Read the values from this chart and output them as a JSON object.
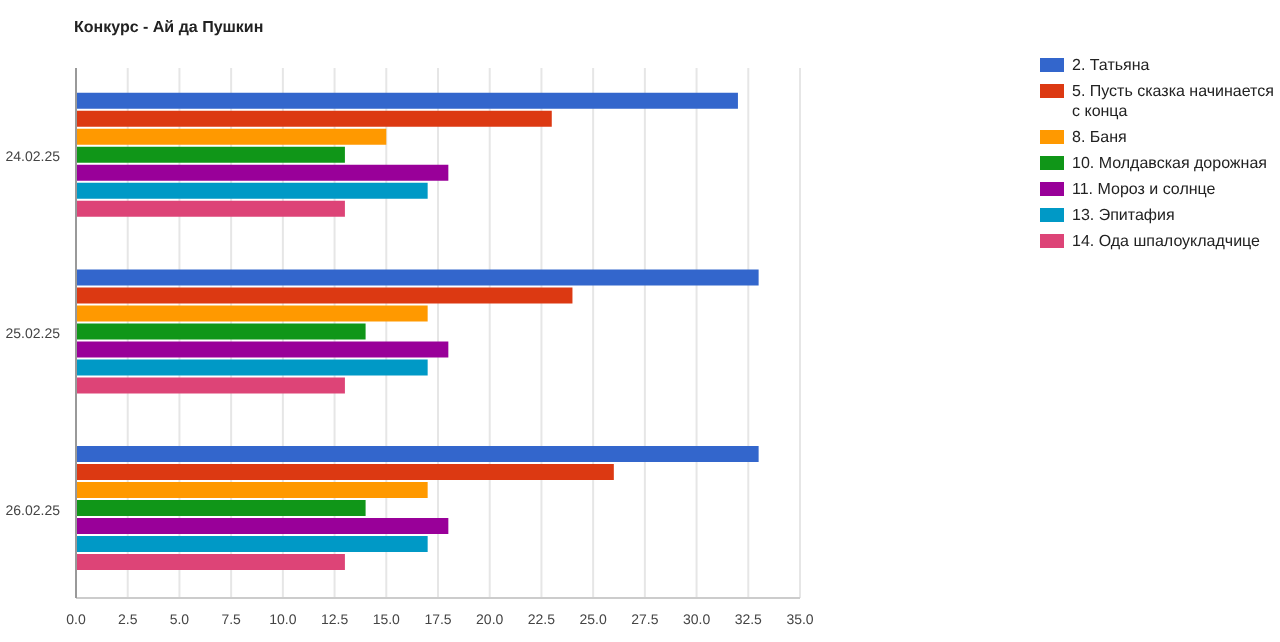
{
  "chart_data": {
    "type": "bar",
    "orientation": "horizontal",
    "title": "Конкурс - Ай да Пушкин",
    "categories": [
      "24.02.25",
      "25.02.25",
      "26.02.25"
    ],
    "series": [
      {
        "name": "2. Татьяна",
        "color": "#3366cc",
        "values": [
          32,
          33,
          33
        ]
      },
      {
        "name": "5. Пусть сказка начинается с конца",
        "color": "#dc3912",
        "values": [
          23,
          24,
          26
        ]
      },
      {
        "name": "8. Баня",
        "color": "#ff9900",
        "values": [
          15,
          17,
          17
        ]
      },
      {
        "name": "10. Молдавская дорожная",
        "color": "#109618",
        "values": [
          13,
          14,
          14
        ]
      },
      {
        "name": "11. Мороз и солнце",
        "color": "#990099",
        "values": [
          18,
          18,
          18
        ]
      },
      {
        "name": "13. Эпитафия",
        "color": "#0099c6",
        "values": [
          17,
          17,
          17
        ]
      },
      {
        "name": "14. Ода шпалоукладчице",
        "color": "#dd4477",
        "values": [
          13,
          13,
          13
        ]
      }
    ],
    "xlim": [
      0,
      35
    ],
    "xticks": [
      {
        "value": 0,
        "label": "0.0"
      },
      {
        "value": 2.5,
        "label": "2.5"
      },
      {
        "value": 5,
        "label": "5.0"
      },
      {
        "value": 7.5,
        "label": "7.5"
      },
      {
        "value": 10,
        "label": "10.0"
      },
      {
        "value": 12.5,
        "label": "12.5"
      },
      {
        "value": 15,
        "label": "15.0"
      },
      {
        "value": 17.5,
        "label": "17.5"
      },
      {
        "value": 20,
        "label": "20.0"
      },
      {
        "value": 22.5,
        "label": "22.5"
      },
      {
        "value": 25,
        "label": "25.0"
      },
      {
        "value": 27.5,
        "label": "27.5"
      },
      {
        "value": 30,
        "label": "30.0"
      },
      {
        "value": 32.5,
        "label": "32.5"
      },
      {
        "value": 35,
        "label": "35.0"
      }
    ],
    "grid": "x",
    "legend": "top right"
  }
}
